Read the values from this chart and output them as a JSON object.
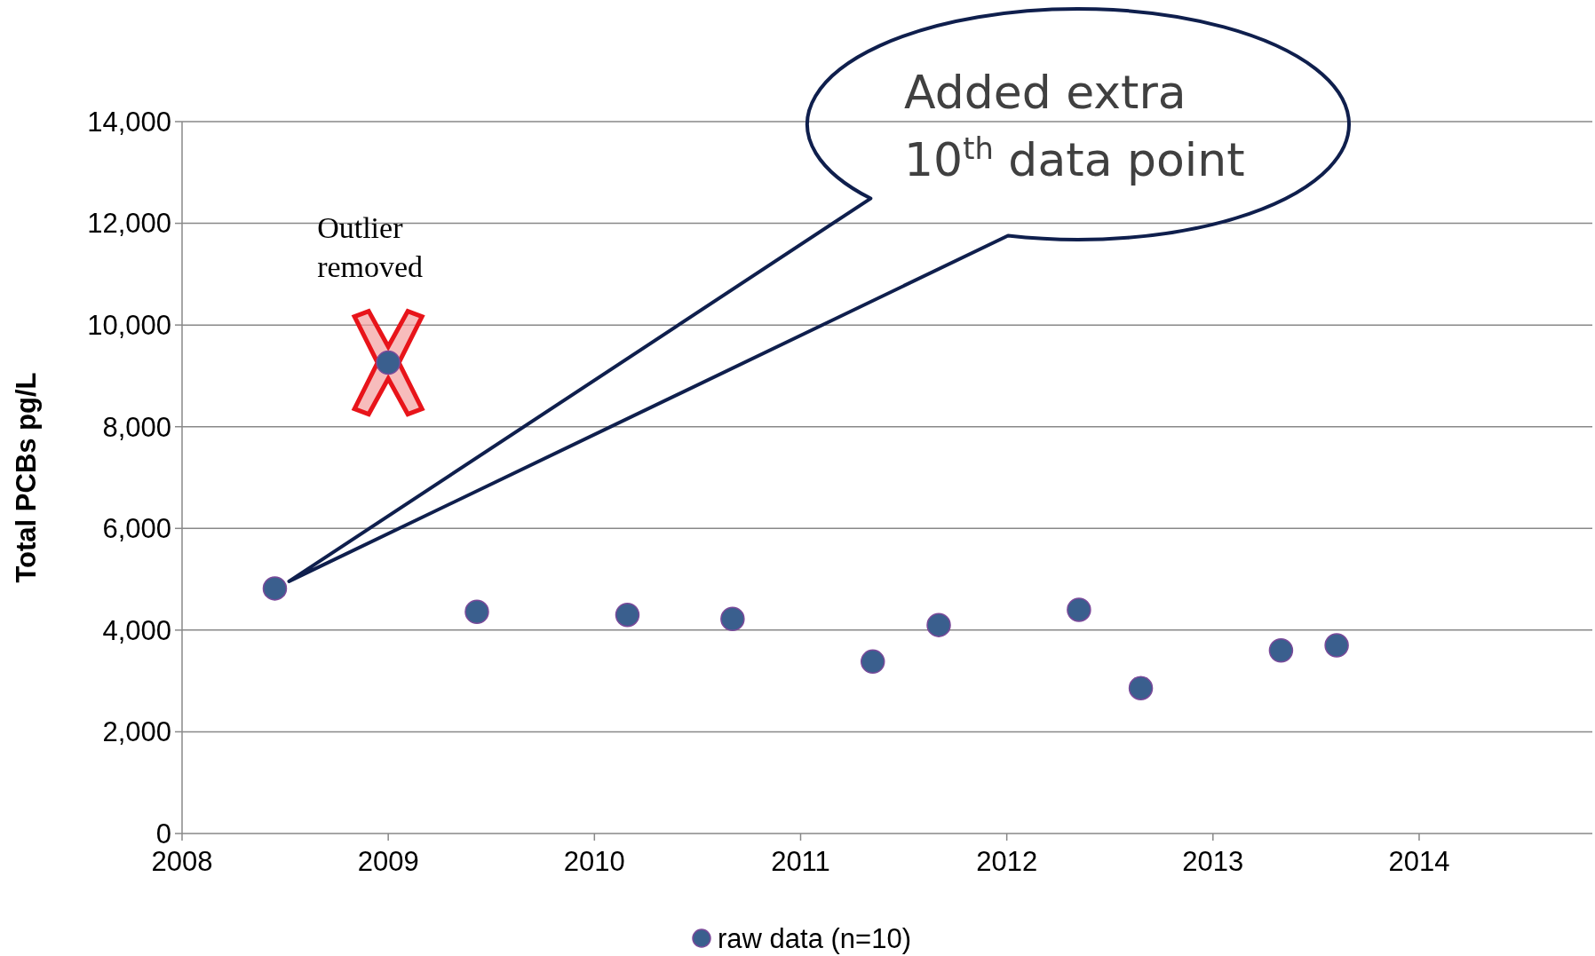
{
  "chart_data": {
    "type": "scatter",
    "ylabel": "Total PCBs pg/L",
    "xlim": [
      2008,
      2014.84
    ],
    "xticks": [
      2008,
      2009,
      2010,
      2011,
      2012,
      2013,
      2014
    ],
    "ylim": [
      0,
      14000
    ],
    "yticks": [
      {
        "value": 0,
        "label": "0"
      },
      {
        "value": 2000,
        "label": "2,000"
      },
      {
        "value": 4000,
        "label": "4,000"
      },
      {
        "value": 6000,
        "label": "6,000"
      },
      {
        "value": 8000,
        "label": "8,000"
      },
      {
        "value": 10000,
        "label": "10,000"
      },
      {
        "value": 12000,
        "label": "12,000"
      },
      {
        "value": 14000,
        "label": "14,000"
      }
    ],
    "grid": "y",
    "legend": "bottom",
    "marker": "circle",
    "series": [
      {
        "name": "raw data (n=10)",
        "color": "#3a5f8e",
        "x": [
          2008.45,
          2009.43,
          2010.16,
          2010.67,
          2011.35,
          2011.67,
          2012.35,
          2012.65,
          2013.33,
          2013.6
        ],
        "values": [
          4820,
          4360,
          4300,
          4220,
          3380,
          4100,
          4400,
          2860,
          3600,
          3700
        ]
      },
      {
        "color": "#3a5f8e",
        "x": [
          2009.0
        ],
        "values": [
          9260
        ]
      }
    ],
    "annotations": [
      {
        "text": "Outlier\nremoved",
        "x": 2009.0,
        "y": 9260
      },
      "Added extra\n10$^{th}$ data point"
    ]
  }
}
